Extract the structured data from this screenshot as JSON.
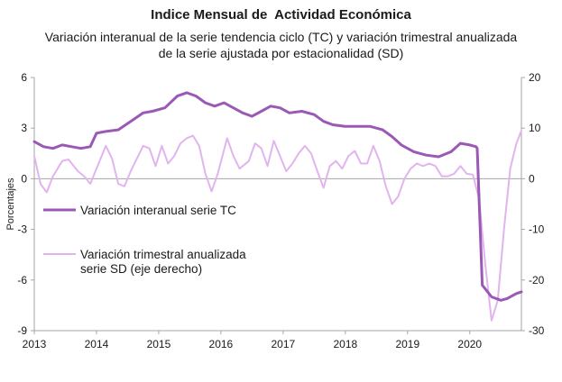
{
  "header": {
    "title": "Indice Mensual de  Actividad Económica",
    "subtitle_line1": "Variación interanual de la serie tendencia ciclo (TC) y variación trimestral anualizada",
    "subtitle_line2": "de la serie ajustada por estacionalidad (SD)"
  },
  "colors": {
    "tc": "#9b59b6",
    "sd": "#e2b4ee",
    "axis": "#a6a6a6"
  },
  "chart_data": {
    "type": "line",
    "ylabel": "Porcentajes",
    "x_range": [
      2013,
      2020.83
    ],
    "x_ticks": [
      "2013",
      "2014",
      "2015",
      "2016",
      "2017",
      "2018",
      "2019",
      "2020"
    ],
    "y_left": {
      "range": [
        -9,
        6
      ],
      "ticks": [
        "6",
        "3",
        "0",
        "-3",
        "-6",
        "-9"
      ]
    },
    "y_right": {
      "range": [
        -30,
        20
      ],
      "ticks": [
        "20",
        "10",
        "0",
        "-10",
        "-20",
        "-30"
      ]
    },
    "legend_position": "left-center",
    "series": [
      {
        "name": "Variación interanual serie TC",
        "axis": "left",
        "x": [
          2013.0,
          2013.15,
          2013.3,
          2013.45,
          2013.6,
          2013.75,
          2013.9,
          2014.0,
          2014.15,
          2014.35,
          2014.55,
          2014.75,
          2014.9,
          2015.1,
          2015.3,
          2015.45,
          2015.6,
          2015.75,
          2015.9,
          2016.05,
          2016.2,
          2016.35,
          2016.5,
          2016.65,
          2016.8,
          2016.95,
          2017.1,
          2017.3,
          2017.5,
          2017.65,
          2017.8,
          2018.0,
          2018.2,
          2018.4,
          2018.6,
          2018.75,
          2018.9,
          2019.1,
          2019.3,
          2019.5,
          2019.7,
          2019.85,
          2020.0,
          2020.1,
          2020.12,
          2020.2,
          2020.35,
          2020.5,
          2020.6,
          2020.75,
          2020.83
        ],
        "y": [
          2.2,
          1.9,
          1.8,
          2.0,
          1.9,
          1.8,
          1.9,
          2.7,
          2.8,
          2.9,
          3.4,
          3.9,
          4.0,
          4.2,
          4.9,
          5.1,
          4.9,
          4.5,
          4.3,
          4.5,
          4.2,
          3.9,
          3.7,
          4.0,
          4.3,
          4.2,
          3.9,
          4.0,
          3.8,
          3.4,
          3.2,
          3.1,
          3.1,
          3.1,
          2.9,
          2.5,
          2.0,
          1.6,
          1.4,
          1.3,
          1.6,
          2.1,
          2.0,
          1.9,
          1.8,
          -6.3,
          -7.0,
          -7.2,
          -7.1,
          -6.8,
          -6.7
        ]
      },
      {
        "name": "Variación trimestral anualizada serie SD (eje derecho)",
        "axis": "right",
        "x": [
          2013.0,
          2013.1,
          2013.2,
          2013.3,
          2013.45,
          2013.55,
          2013.7,
          2013.8,
          2013.9,
          2014.05,
          2014.15,
          2014.25,
          2014.35,
          2014.45,
          2014.55,
          2014.65,
          2014.75,
          2014.85,
          2014.95,
          2015.05,
          2015.15,
          2015.25,
          2015.35,
          2015.45,
          2015.55,
          2015.65,
          2015.75,
          2015.85,
          2015.95,
          2016.1,
          2016.2,
          2016.3,
          2016.45,
          2016.55,
          2016.65,
          2016.75,
          2016.85,
          2016.95,
          2017.05,
          2017.15,
          2017.25,
          2017.35,
          2017.45,
          2017.55,
          2017.65,
          2017.75,
          2017.85,
          2017.95,
          2018.05,
          2018.15,
          2018.25,
          2018.35,
          2018.45,
          2018.55,
          2018.65,
          2018.75,
          2018.85,
          2018.95,
          2019.05,
          2019.15,
          2019.25,
          2019.35,
          2019.45,
          2019.55,
          2019.65,
          2019.75,
          2019.85,
          2019.95,
          2020.05,
          2020.15,
          2020.25,
          2020.35,
          2020.45,
          2020.55,
          2020.65,
          2020.75,
          2020.83
        ],
        "y": [
          4.5,
          -1.0,
          -2.7,
          0.5,
          3.5,
          3.8,
          1.5,
          0.5,
          -1.0,
          3.5,
          6.5,
          4.0,
          -1.0,
          -1.5,
          1.5,
          4.0,
          6.5,
          6.0,
          2.5,
          6.5,
          3.0,
          4.5,
          7.0,
          8.0,
          8.5,
          6.5,
          1.0,
          -2.5,
          1.0,
          8.0,
          4.5,
          2.0,
          3.5,
          7.0,
          6.0,
          2.5,
          7.5,
          4.5,
          1.5,
          3.0,
          5.0,
          6.5,
          5.0,
          1.5,
          -1.8,
          2.5,
          3.5,
          2.0,
          4.5,
          5.5,
          3.0,
          3.0,
          6.5,
          3.5,
          -1.5,
          -5.0,
          -3.5,
          0.0,
          2.0,
          3.0,
          2.5,
          3.0,
          2.5,
          0.5,
          0.5,
          1.0,
          2.5,
          1.0,
          0.8,
          -4.0,
          -17.0,
          -28.0,
          -24.0,
          -10.0,
          2.0,
          7.0,
          9.5
        ]
      }
    ]
  }
}
